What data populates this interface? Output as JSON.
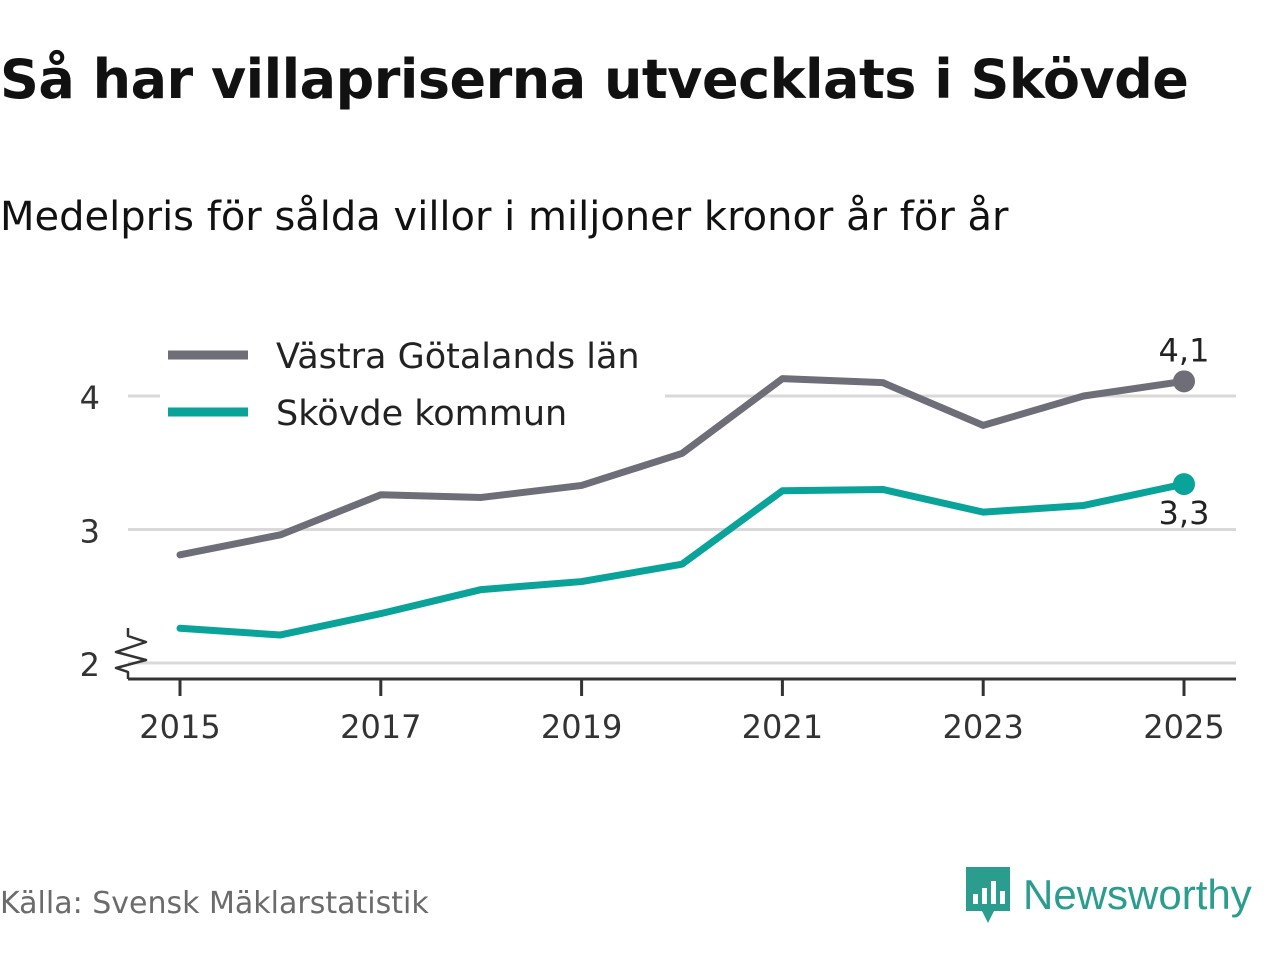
{
  "title": "Så har villapriserna utvecklats i Skövde",
  "subtitle": "Medelpris för sålda villor i miljoner kronor år för år",
  "source": "Källa: Svensk Mäklarstatistik",
  "brand": {
    "name": "Newsworthy",
    "icon": "newsworthy-logo-icon",
    "color": "#2a9d8f"
  },
  "chart_data": {
    "type": "line",
    "x": [
      2015,
      2016,
      2017,
      2018,
      2019,
      2020,
      2021,
      2022,
      2023,
      2024,
      2025
    ],
    "xticks": [
      "2015",
      "2017",
      "2019",
      "2021",
      "2023",
      "2025"
    ],
    "yticks": [
      "2",
      "3",
      "4"
    ],
    "ylim": [
      2,
      4.4
    ],
    "axis_break": true,
    "grid": true,
    "legend_position": "top-left",
    "series": [
      {
        "name": "Västra Götalands län",
        "color": "#6e6e78",
        "values": [
          2.81,
          2.96,
          3.26,
          3.24,
          3.33,
          3.57,
          4.13,
          4.1,
          3.78,
          4.0,
          4.11
        ],
        "end_label": "4,1",
        "end_label_position": "above"
      },
      {
        "name": "Skövde kommun",
        "color": "#0aa39a",
        "values": [
          2.26,
          2.21,
          2.37,
          2.55,
          2.61,
          2.74,
          3.29,
          3.3,
          3.13,
          3.18,
          3.34
        ],
        "end_label": "3,3",
        "end_label_position": "below"
      }
    ]
  }
}
